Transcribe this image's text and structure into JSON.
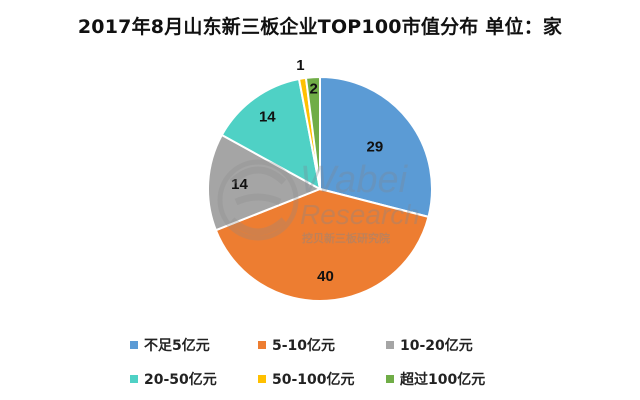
{
  "title": "2017年8月山东新三板企业TOP100市值分布 单位：家",
  "watermark": {
    "logo_text": "Wabei",
    "sub_text": "Research",
    "cn_text": "挖贝新三板研究院"
  },
  "chart_data": {
    "type": "pie",
    "title": "2017年8月山东新三板企业TOP100市值分布 单位：家",
    "unit": "家",
    "categories": [
      "不足5亿元",
      "5-10亿元",
      "10-20亿元",
      "20-50亿元",
      "50-100亿元",
      "超过100亿元"
    ],
    "values": [
      29,
      40,
      14,
      14,
      1,
      2
    ],
    "colors": [
      "#5B9BD5",
      "#ED7D31",
      "#A5A5A5",
      "#4FD1C5",
      "#FFC000",
      "#70AD47"
    ],
    "start": "12 o'clock",
    "direction": "clockwise",
    "legend_position": "bottom"
  }
}
